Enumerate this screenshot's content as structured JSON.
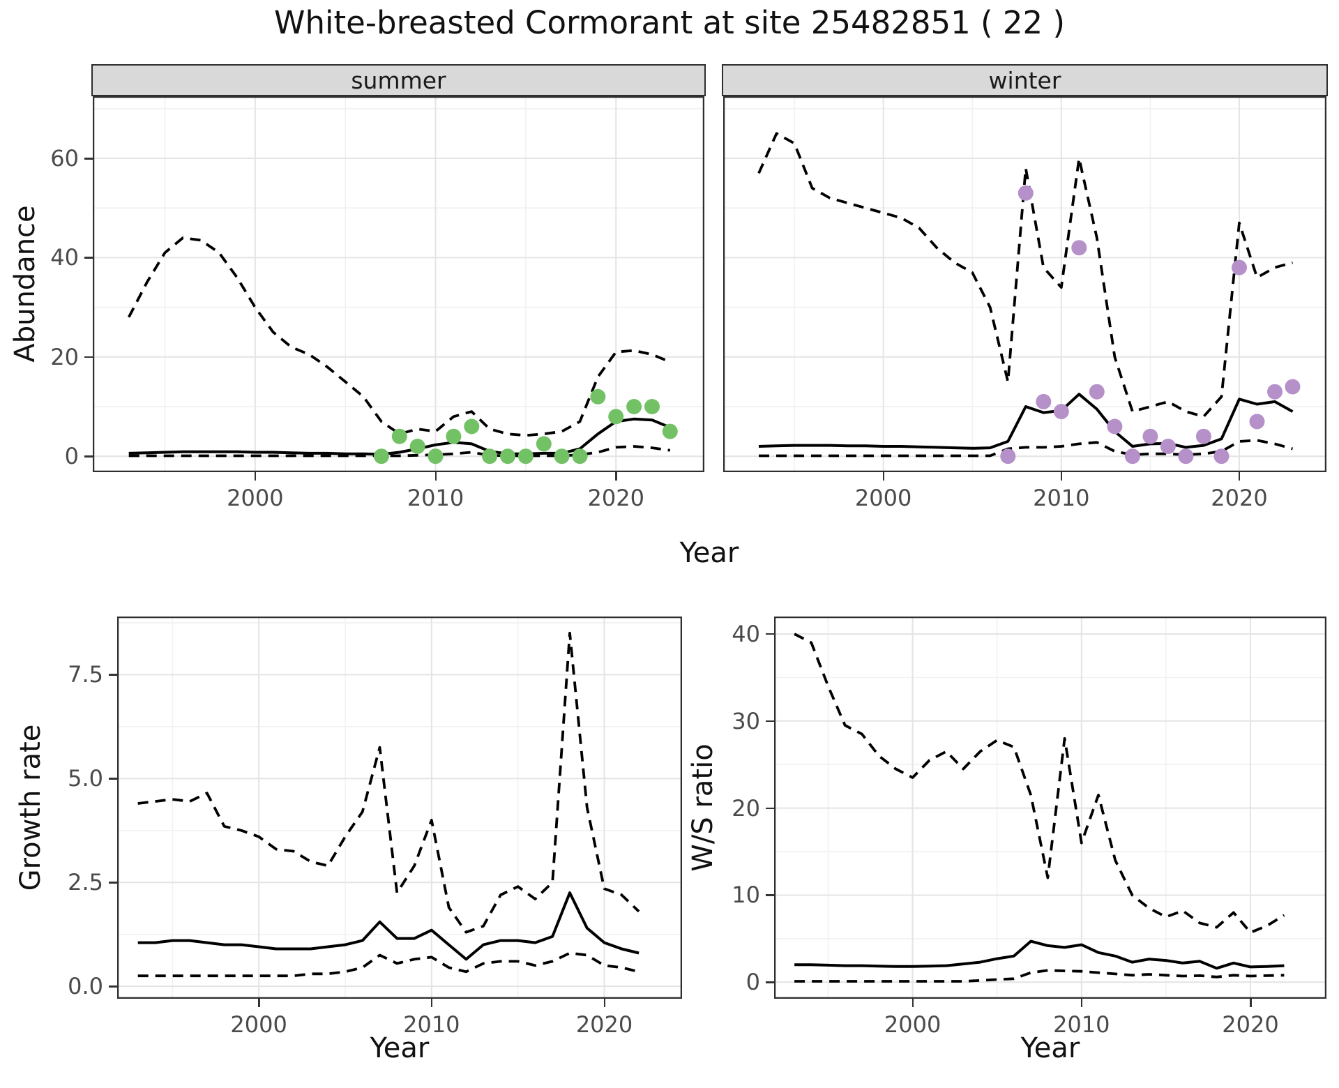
{
  "title": "White-breasted Cormorant at site 25482851 ( 22 )",
  "colors": {
    "summer_point": "#72c265",
    "winter_point": "#b590c9",
    "line": "#000000",
    "grid_major": "#e4e4e4",
    "grid_minor": "#f1f1f1",
    "strip_bg": "#d9d9d9",
    "panel_border": "#2e2e2e",
    "tick_text": "#4a4a4a"
  },
  "chart_data": [
    {
      "type": "line+scatter",
      "facet": "summer",
      "xlabel": "Year",
      "ylabel": "Abundance",
      "xlim": [
        1991.0,
        2024.9
      ],
      "ylim": [
        -3.2,
        72.5
      ],
      "xticks": [
        2000,
        2010,
        2020
      ],
      "xtick_labels": [
        "2000",
        "2010",
        "2020"
      ],
      "xminor": [
        1995,
        2005,
        2015
      ],
      "yticks": [
        0,
        20,
        40,
        60
      ],
      "ytick_labels": [
        "0",
        "20",
        "40",
        "60"
      ],
      "yminor": [
        10,
        30,
        50,
        70
      ],
      "legend": "none",
      "grid": "on",
      "point_color": "#72c265",
      "series": {
        "years": [
          1993,
          1994,
          1995,
          1996,
          1997,
          1998,
          1999,
          2000,
          2001,
          2002,
          2003,
          2004,
          2005,
          2006,
          2007,
          2008,
          2009,
          2010,
          2011,
          2012,
          2013,
          2014,
          2015,
          2016,
          2017,
          2018,
          2019,
          2020,
          2021,
          2022,
          2023
        ],
        "mean": [
          0.6,
          0.7,
          0.8,
          0.9,
          0.9,
          0.9,
          0.9,
          0.8,
          0.8,
          0.7,
          0.6,
          0.6,
          0.5,
          0.5,
          0.4,
          0.8,
          1.5,
          2.3,
          2.8,
          2.5,
          1.0,
          0.5,
          0.5,
          0.6,
          0.6,
          1.5,
          4.5,
          7.0,
          7.5,
          7.3,
          5.8
        ],
        "upper": [
          28,
          35,
          41,
          44,
          43.5,
          41,
          36,
          30,
          25,
          22,
          20.5,
          18,
          15,
          12,
          7,
          4.5,
          5.5,
          5,
          8,
          9,
          5.5,
          4.5,
          4.2,
          4.5,
          5,
          7,
          16,
          21,
          21.3,
          20.5,
          19
        ],
        "lower": [
          0.1,
          0.1,
          0.1,
          0.1,
          0.1,
          0.1,
          0.1,
          0.1,
          0.1,
          0.1,
          0.1,
          0.1,
          0.1,
          0.1,
          0.1,
          0.1,
          0.2,
          0.3,
          0.5,
          0.8,
          0.2,
          0.1,
          0.1,
          0.1,
          0.1,
          0.3,
          0.8,
          1.8,
          2.0,
          1.7,
          1.2
        ]
      },
      "points": {
        "years": [
          2007,
          2008,
          2009,
          2010,
          2011,
          2012,
          2013,
          2014,
          2015,
          2016,
          2017,
          2018,
          2019,
          2020,
          2021,
          2022,
          2023
        ],
        "values": [
          0,
          4,
          2,
          0,
          4,
          6,
          0,
          0,
          0,
          2.5,
          0,
          0,
          12,
          8,
          10,
          10,
          5
        ]
      }
    },
    {
      "type": "line+scatter",
      "facet": "winter",
      "xlabel": "Year",
      "ylabel": "Abundance",
      "xlim": [
        1991.0,
        2024.9
      ],
      "ylim": [
        -3.2,
        72.5
      ],
      "xticks": [
        2000,
        2010,
        2020
      ],
      "xtick_labels": [
        "2000",
        "2010",
        "2020"
      ],
      "xminor": [
        1995,
        2005,
        2015
      ],
      "yticks": [
        0,
        20,
        40,
        60
      ],
      "ytick_labels": [
        "0",
        "20",
        "40",
        "60"
      ],
      "yminor": [
        10,
        30,
        50,
        70
      ],
      "legend": "none",
      "grid": "on",
      "point_color": "#b590c9",
      "series": {
        "years": [
          1993,
          1994,
          1995,
          1996,
          1997,
          1998,
          1999,
          2000,
          2001,
          2002,
          2003,
          2004,
          2005,
          2006,
          2007,
          2008,
          2009,
          2010,
          2011,
          2012,
          2013,
          2014,
          2015,
          2016,
          2017,
          2018,
          2019,
          2020,
          2021,
          2022,
          2023
        ],
        "mean": [
          2.0,
          2.1,
          2.2,
          2.2,
          2.2,
          2.1,
          2.1,
          2.0,
          2.0,
          1.9,
          1.8,
          1.7,
          1.6,
          1.7,
          3.0,
          10.0,
          8.8,
          9.2,
          12.5,
          9.5,
          5.0,
          2.0,
          2.5,
          2.6,
          1.8,
          2.2,
          3.5,
          11.5,
          10.5,
          11.0,
          9.0
        ],
        "upper": [
          57,
          65,
          63,
          54,
          52,
          51,
          50,
          49,
          48,
          46,
          42,
          39,
          37,
          30,
          15,
          58,
          38,
          34,
          60,
          44,
          20,
          9,
          10,
          11,
          9,
          8,
          12,
          47,
          36,
          38,
          39
        ],
        "lower": [
          0.1,
          0.1,
          0.1,
          0.1,
          0.1,
          0.1,
          0.1,
          0.1,
          0.1,
          0.1,
          0.1,
          0.1,
          0.1,
          0.1,
          1.5,
          1.8,
          1.8,
          2.0,
          2.5,
          2.8,
          1.0,
          0.3,
          0.5,
          0.5,
          0.3,
          0.5,
          1.0,
          3.0,
          3.2,
          2.5,
          1.5
        ]
      },
      "points": {
        "years": [
          2007,
          2008,
          2009,
          2010,
          2011,
          2012,
          2013,
          2014,
          2015,
          2016,
          2017,
          2018,
          2019,
          2020,
          2021,
          2022,
          2023
        ],
        "values": [
          0,
          53,
          11,
          9,
          42,
          13,
          6,
          0,
          4,
          2,
          0,
          4,
          0,
          38,
          7,
          13,
          14
        ]
      }
    },
    {
      "type": "line",
      "facet": null,
      "xlabel": "Year",
      "ylabel": "Growth rate",
      "xlim": [
        1991.8,
        2024.5
      ],
      "ylim": [
        -0.3,
        8.9
      ],
      "xticks": [
        2000,
        2010,
        2020
      ],
      "xtick_labels": [
        "2000",
        "2010",
        "2020"
      ],
      "xminor": [
        1995,
        2005,
        2015
      ],
      "yticks": [
        0.0,
        2.5,
        5.0,
        7.5
      ],
      "ytick_labels": [
        "0.0",
        "2.5",
        "5.0",
        "7.5"
      ],
      "yminor": [
        1.25,
        3.75,
        6.25,
        8.75
      ],
      "legend": "none",
      "grid": "on",
      "point_color": null,
      "series": {
        "years": [
          1993,
          1994,
          1995,
          1996,
          1997,
          1998,
          1999,
          2000,
          2001,
          2002,
          2003,
          2004,
          2005,
          2006,
          2007,
          2008,
          2009,
          2010,
          2011,
          2012,
          2013,
          2014,
          2015,
          2016,
          2017,
          2018,
          2019,
          2020,
          2021,
          2022
        ],
        "mean": [
          1.05,
          1.05,
          1.1,
          1.1,
          1.05,
          1.0,
          1.0,
          0.95,
          0.9,
          0.9,
          0.9,
          0.95,
          1.0,
          1.1,
          1.55,
          1.15,
          1.15,
          1.35,
          1.0,
          0.65,
          1.0,
          1.1,
          1.1,
          1.05,
          1.2,
          2.25,
          1.4,
          1.05,
          0.9,
          0.8
        ],
        "upper": [
          4.4,
          4.45,
          4.5,
          4.45,
          4.65,
          3.85,
          3.75,
          3.6,
          3.3,
          3.25,
          3.0,
          2.9,
          3.6,
          4.2,
          5.75,
          2.25,
          2.9,
          4.0,
          1.9,
          1.3,
          1.45,
          2.2,
          2.4,
          2.1,
          2.5,
          8.5,
          4.3,
          2.35,
          2.2,
          1.8
        ],
        "lower": [
          0.25,
          0.25,
          0.25,
          0.25,
          0.25,
          0.25,
          0.25,
          0.25,
          0.25,
          0.25,
          0.3,
          0.3,
          0.35,
          0.45,
          0.75,
          0.55,
          0.65,
          0.7,
          0.45,
          0.35,
          0.55,
          0.6,
          0.6,
          0.5,
          0.6,
          0.8,
          0.75,
          0.5,
          0.45,
          0.35
        ]
      },
      "points": null
    },
    {
      "type": "line",
      "facet": null,
      "xlabel": "Year",
      "ylabel": "W/S ratio",
      "xlim": [
        1991.8,
        2024.5
      ],
      "ylim": [
        -1.9,
        42.0
      ],
      "xticks": [
        2000,
        2010,
        2020
      ],
      "xtick_labels": [
        "2000",
        "2010",
        "2020"
      ],
      "xminor": [
        1995,
        2005,
        2015
      ],
      "yticks": [
        0,
        10,
        20,
        30,
        40
      ],
      "ytick_labels": [
        "0",
        "10",
        "20",
        "30",
        "40"
      ],
      "yminor": [
        5,
        15,
        25,
        35
      ],
      "legend": "none",
      "grid": "on",
      "point_color": null,
      "series": {
        "years": [
          1993,
          1994,
          1995,
          1996,
          1997,
          1998,
          1999,
          2000,
          2001,
          2002,
          2003,
          2004,
          2005,
          2006,
          2007,
          2008,
          2009,
          2010,
          2011,
          2012,
          2013,
          2014,
          2015,
          2016,
          2017,
          2018,
          2019,
          2020,
          2021,
          2022
        ],
        "mean": [
          2.0,
          2.0,
          1.95,
          1.9,
          1.9,
          1.85,
          1.8,
          1.8,
          1.85,
          1.9,
          2.1,
          2.3,
          2.7,
          3.0,
          4.7,
          4.2,
          4.0,
          4.3,
          3.4,
          3.0,
          2.3,
          2.65,
          2.5,
          2.2,
          2.4,
          1.6,
          2.2,
          1.75,
          1.8,
          1.9
        ],
        "upper": [
          40,
          39,
          34,
          29.5,
          28.5,
          26,
          24.5,
          23.5,
          25.5,
          26.5,
          24.5,
          26.5,
          27.8,
          27,
          21.5,
          12,
          28,
          16,
          21.5,
          14,
          10,
          8.5,
          7.5,
          8.2,
          6.8,
          6.3,
          8,
          5.7,
          6.5,
          7.7
        ],
        "lower": [
          0.1,
          0.1,
          0.1,
          0.1,
          0.1,
          0.1,
          0.1,
          0.1,
          0.1,
          0.1,
          0.1,
          0.2,
          0.3,
          0.4,
          1.1,
          1.35,
          1.3,
          1.25,
          1.1,
          0.95,
          0.8,
          0.9,
          0.8,
          0.7,
          0.75,
          0.6,
          0.8,
          0.7,
          0.75,
          0.8
        ]
      },
      "points": null
    }
  ]
}
